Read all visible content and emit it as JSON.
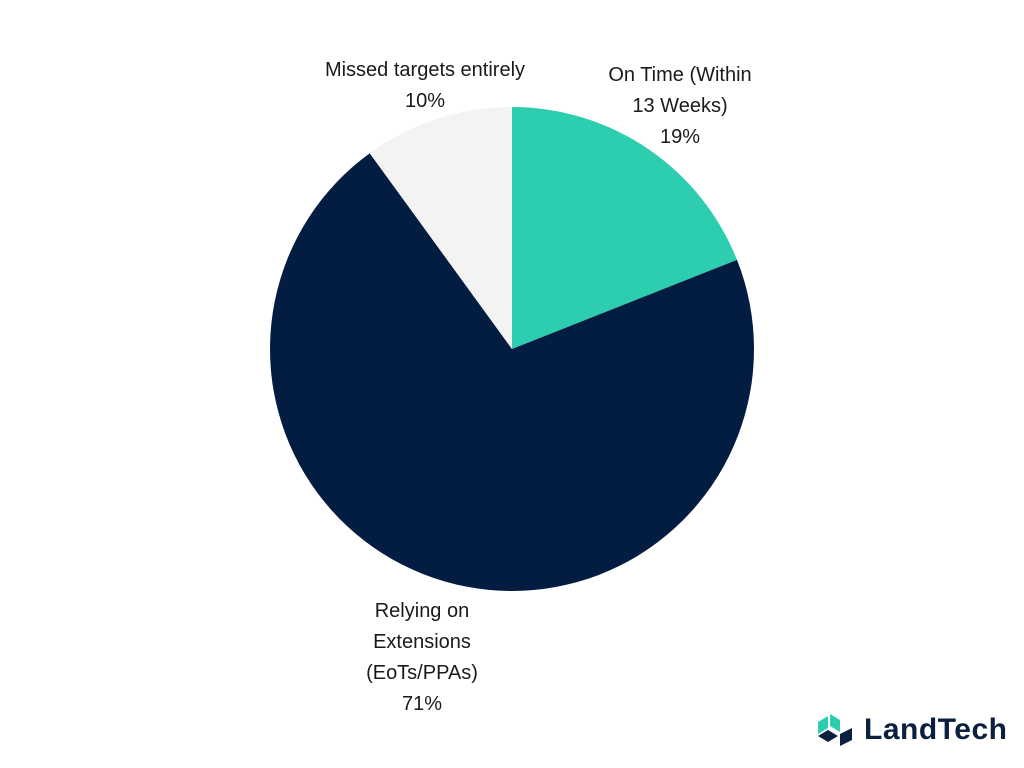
{
  "chart_data": {
    "type": "pie",
    "title": "",
    "start_angle_deg": 0,
    "direction": "clockwise",
    "slices": [
      {
        "label_lines": [
          "On Time (Within",
          "13 Weeks)"
        ],
        "value_label": "19%",
        "value": 19,
        "color": "#2dcdb0"
      },
      {
        "label_lines": [
          "Relying on",
          "Extensions",
          "(EoTs/PPAs)"
        ],
        "value_label": "71%",
        "value": 71,
        "color": "#031c42"
      },
      {
        "label_lines": [
          "Missed targets entirely"
        ],
        "value_label": "10%",
        "value": 10,
        "color": "#f3f3f3"
      }
    ]
  },
  "brand": {
    "name": "LandTech",
    "colors": {
      "primary": "#0b1f3f",
      "accent": "#2dcdb0"
    }
  }
}
